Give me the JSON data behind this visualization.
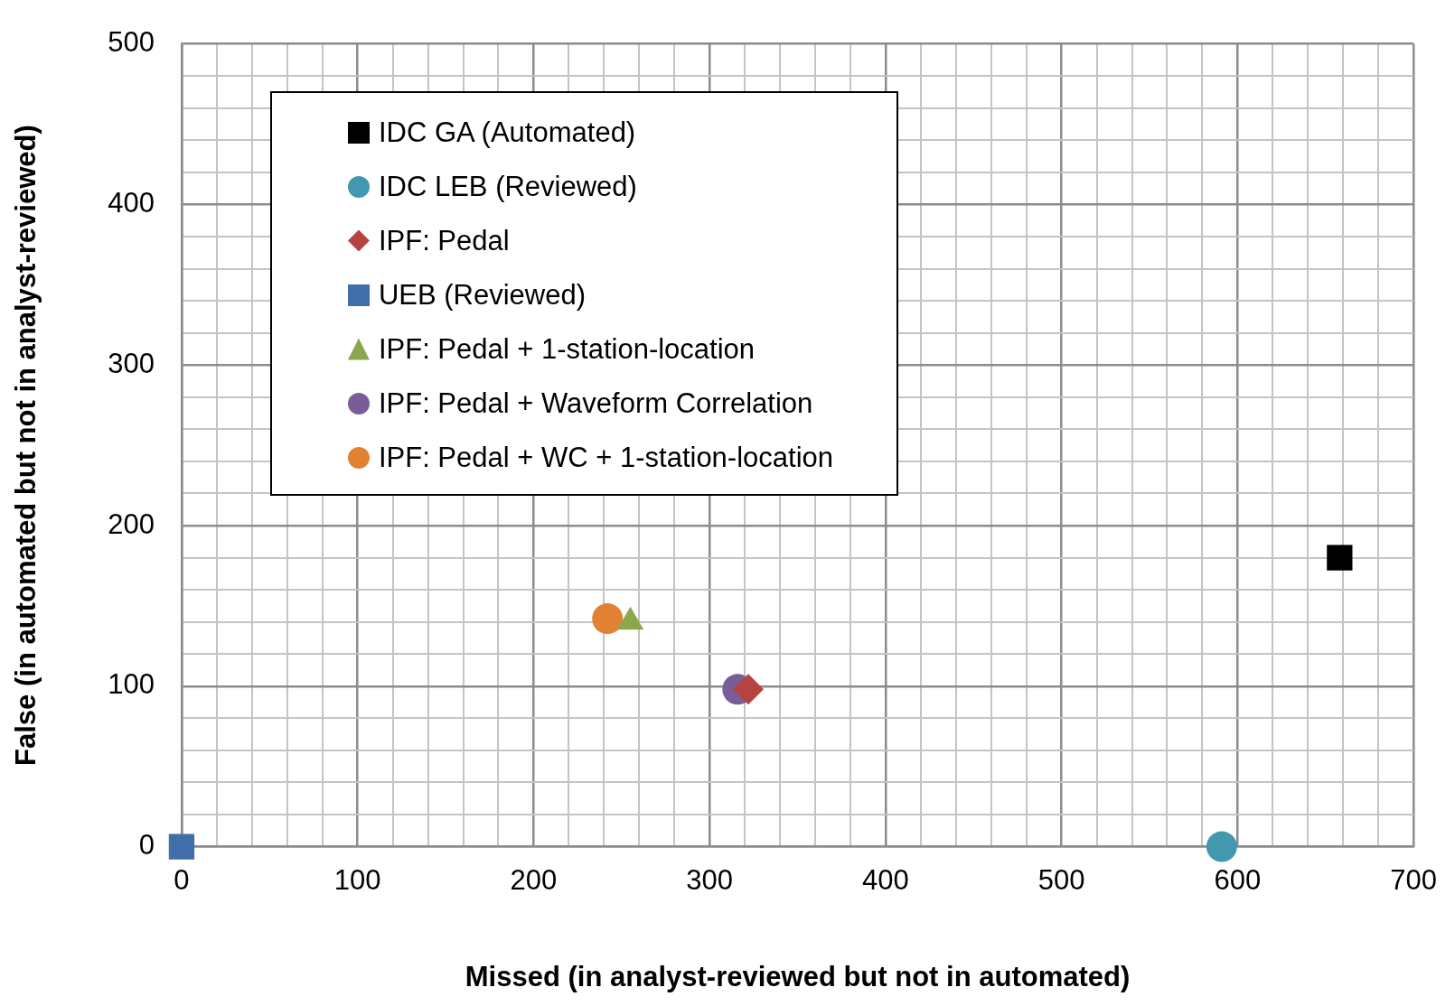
{
  "chart_data": {
    "type": "scatter",
    "xlabel": "Missed (in analyst-reviewed but not in automated)",
    "ylabel": "False (in automated but not in analyst-reviewed)",
    "xlim": [
      0,
      700
    ],
    "xticks": [
      0,
      {
        "value": 20,
        "label": null
      },
      {
        "value": 40,
        "label": null
      },
      {
        "value": 60,
        "label": null
      },
      {
        "value": 80,
        "label": null
      },
      100,
      {
        "value": 120,
        "label": null
      },
      {
        "value": 140,
        "label": null
      },
      {
        "value": 160,
        "label": null
      },
      {
        "value": 180,
        "label": null
      },
      200,
      {
        "value": 220,
        "label": null
      },
      {
        "value": 240,
        "label": null
      },
      {
        "value": 260,
        "label": null
      },
      {
        "value": 280,
        "label": null
      },
      300,
      {
        "value": 320,
        "label": null
      },
      {
        "value": 340,
        "label": null
      },
      {
        "value": 360,
        "label": null
      },
      {
        "value": 380,
        "label": null
      },
      400,
      {
        "value": 420,
        "label": null
      },
      {
        "value": 440,
        "label": null
      },
      {
        "value": 460,
        "label": null
      },
      {
        "value": 480,
        "label": null
      },
      500,
      {
        "value": 520,
        "label": null
      },
      {
        "value": 540,
        "label": null
      },
      {
        "value": 560,
        "label": null
      },
      {
        "value": 580,
        "label": null
      },
      600,
      {
        "value": 620,
        "label": null
      },
      {
        "value": 640,
        "label": null
      },
      {
        "value": 660,
        "label": null
      },
      {
        "value": 680,
        "label": null
      },
      700
    ],
    "ylim": [
      0,
      500
    ],
    "yticks": [
      0,
      {
        "value": 20,
        "label": null
      },
      {
        "value": 40,
        "label": null
      },
      {
        "value": 60,
        "label": null
      },
      {
        "value": 80,
        "label": null
      },
      100,
      {
        "value": 120,
        "label": null
      },
      {
        "value": 140,
        "label": null
      },
      {
        "value": 160,
        "label": null
      },
      {
        "value": 180,
        "label": null
      },
      200,
      {
        "value": 220,
        "label": null
      },
      {
        "value": 240,
        "label": null
      },
      {
        "value": 260,
        "label": null
      },
      {
        "value": 280,
        "label": null
      },
      300,
      {
        "value": 320,
        "label": null
      },
      {
        "value": 340,
        "label": null
      },
      {
        "value": 360,
        "label": null
      },
      {
        "value": 380,
        "label": null
      },
      400,
      {
        "value": 420,
        "label": null
      },
      {
        "value": 440,
        "label": null
      },
      {
        "value": 460,
        "label": null
      },
      {
        "value": 480,
        "label": null
      },
      500
    ],
    "grid": true,
    "legend": "top left",
    "series": [
      {
        "name": "IDC GA (Automated)",
        "color": "#000000",
        "marker": "square",
        "x": [
          658
        ],
        "values": [
          180
        ]
      },
      {
        "name": "IDC LEB (Reviewed)",
        "color": "#4198af",
        "marker": "circle",
        "x": [
          591
        ],
        "values": [
          0
        ]
      },
      {
        "name": "IPF: Pedal",
        "color": "#b5433f",
        "marker": "diamond",
        "x": [
          322
        ],
        "values": [
          98
        ]
      },
      {
        "name": "UEB (Reviewed)",
        "color": "#3f6ea8",
        "marker": "square",
        "x": [
          0
        ],
        "values": [
          0
        ]
      },
      {
        "name": "IPF: Pedal + 1-station-location",
        "color": "#8aa84b",
        "marker": "triangle",
        "x": [
          255
        ],
        "values": [
          140
        ]
      },
      {
        "name": "IPF: Pedal + Waveform Correlation",
        "color": "#7a5c99",
        "marker": "circle",
        "x": [
          316
        ],
        "values": [
          98
        ]
      },
      {
        "name": "IPF: Pedal + WC + 1-station-location",
        "color": "#e08231",
        "marker": "circle",
        "x": [
          242
        ],
        "values": [
          142
        ]
      }
    ]
  }
}
